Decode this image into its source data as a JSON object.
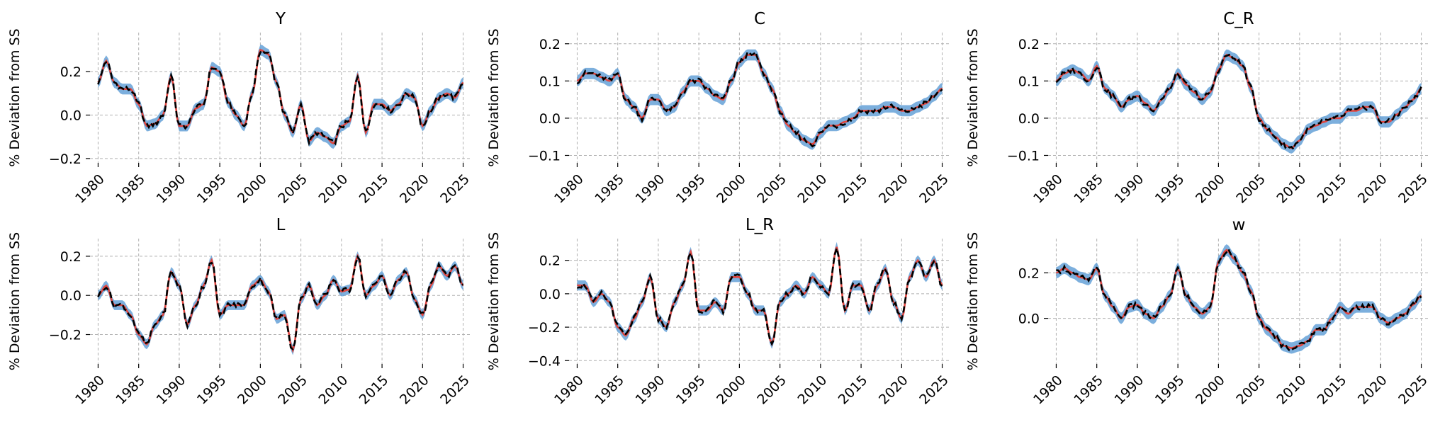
{
  "figure": {
    "ylabel": "% Deviation from SS",
    "colors": {
      "band": "#5b9bd5",
      "band_opacity": 0.8,
      "median": "#e0453f",
      "observed": "#000000",
      "grid": "#b0b0b0"
    },
    "line_styles": {
      "observed": "dashed",
      "median": "solid"
    }
  },
  "chart_data": [
    {
      "type": "line",
      "title": "Y",
      "ylabel": "% Deviation from SS",
      "x_ticks": [
        1980,
        1985,
        1990,
        1995,
        2000,
        2005,
        2010,
        2015,
        2020,
        2025
      ],
      "xlim": [
        1979,
        2026
      ],
      "y_ticks": [
        -0.2,
        0.0,
        0.2
      ],
      "y_tick_labels": [
        "−0.2",
        "0.0",
        "0.2"
      ],
      "ylim": [
        -0.22,
        0.38
      ],
      "band_halfwidth": 0.025,
      "x": [
        1980,
        1981,
        1982,
        1983,
        1984,
        1985,
        1986,
        1987,
        1988,
        1989,
        1990,
        1991,
        1992,
        1993,
        1994,
        1995,
        1996,
        1997,
        1998,
        1999,
        2000,
        2001,
        2002,
        2003,
        2004,
        2005,
        2006,
        2007,
        2008,
        2009,
        2010,
        2011,
        2012,
        2013,
        2014,
        2015,
        2016,
        2017,
        2018,
        2019,
        2020,
        2021,
        2022,
        2023,
        2024,
        2025
      ],
      "values": [
        0.15,
        0.25,
        0.15,
        0.12,
        0.12,
        0.05,
        -0.05,
        -0.04,
        0.0,
        0.18,
        -0.05,
        -0.05,
        0.03,
        0.05,
        0.22,
        0.2,
        0.06,
        0.0,
        -0.05,
        0.1,
        0.3,
        0.28,
        0.15,
        0.0,
        -0.08,
        0.05,
        -0.12,
        -0.08,
        -0.1,
        -0.13,
        -0.05,
        -0.03,
        0.18,
        -0.08,
        0.05,
        0.05,
        0.02,
        0.05,
        0.1,
        0.08,
        -0.05,
        0.02,
        0.08,
        0.1,
        0.08,
        0.15
      ]
    },
    {
      "type": "line",
      "title": "C",
      "ylabel": "% Deviation from SS",
      "x_ticks": [
        1980,
        1985,
        1990,
        1995,
        2000,
        2005,
        2010,
        2015,
        2020,
        2025
      ],
      "xlim": [
        1979,
        2026
      ],
      "y_ticks": [
        -0.1,
        0.0,
        0.1,
        0.2
      ],
      "y_tick_labels": [
        "−0.1",
        "0.0",
        "0.1",
        "0.2"
      ],
      "ylim": [
        -0.12,
        0.23
      ],
      "band_halfwidth": 0.015,
      "x": [
        1980,
        1981,
        1982,
        1983,
        1984,
        1985,
        1986,
        1987,
        1988,
        1989,
        1990,
        1991,
        1992,
        1993,
        1994,
        1995,
        1996,
        1997,
        1998,
        1999,
        2000,
        2001,
        2002,
        2003,
        2004,
        2005,
        2006,
        2007,
        2008,
        2009,
        2010,
        2011,
        2012,
        2013,
        2014,
        2015,
        2016,
        2017,
        2018,
        2019,
        2020,
        2021,
        2022,
        2023,
        2024,
        2025
      ],
      "values": [
        0.1,
        0.12,
        0.12,
        0.11,
        0.1,
        0.12,
        0.05,
        0.03,
        0.0,
        0.05,
        0.05,
        0.02,
        0.03,
        0.07,
        0.1,
        0.1,
        0.08,
        0.06,
        0.05,
        0.1,
        0.15,
        0.17,
        0.17,
        0.12,
        0.08,
        0.02,
        -0.02,
        -0.04,
        -0.06,
        -0.07,
        -0.04,
        -0.02,
        -0.02,
        -0.01,
        0.0,
        0.02,
        0.02,
        0.02,
        0.03,
        0.03,
        0.02,
        0.02,
        0.03,
        0.04,
        0.06,
        0.08
      ]
    },
    {
      "type": "line",
      "title": "C_R",
      "ylabel": "% Deviation from SS",
      "x_ticks": [
        1980,
        1985,
        1990,
        1995,
        2000,
        2005,
        2010,
        2015,
        2020,
        2025
      ],
      "xlim": [
        1979,
        2026
      ],
      "y_ticks": [
        -0.1,
        0.0,
        0.1,
        0.2
      ],
      "y_tick_labels": [
        "−0.1",
        "0.0",
        "0.1",
        "0.2"
      ],
      "ylim": [
        -0.12,
        0.23
      ],
      "band_halfwidth": 0.015,
      "x": [
        1980,
        1981,
        1982,
        1983,
        1984,
        1985,
        1986,
        1987,
        1988,
        1989,
        1990,
        1991,
        1992,
        1993,
        1994,
        1995,
        1996,
        1997,
        1998,
        1999,
        2000,
        2001,
        2002,
        2003,
        2004,
        2005,
        2006,
        2007,
        2008,
        2009,
        2010,
        2011,
        2012,
        2013,
        2014,
        2015,
        2016,
        2017,
        2018,
        2019,
        2020,
        2021,
        2022,
        2023,
        2024,
        2025
      ],
      "values": [
        0.1,
        0.12,
        0.13,
        0.12,
        0.1,
        0.14,
        0.08,
        0.06,
        0.03,
        0.05,
        0.06,
        0.04,
        0.02,
        0.05,
        0.08,
        0.12,
        0.09,
        0.07,
        0.05,
        0.07,
        0.13,
        0.17,
        0.16,
        0.14,
        0.08,
        0.0,
        -0.03,
        -0.05,
        -0.07,
        -0.08,
        -0.06,
        -0.03,
        -0.02,
        -0.01,
        0.0,
        0.0,
        0.02,
        0.02,
        0.03,
        0.03,
        -0.01,
        -0.01,
        0.01,
        0.03,
        0.05,
        0.08
      ]
    },
    {
      "type": "line",
      "title": "L",
      "ylabel": "% Deviation from SS",
      "x_ticks": [
        1980,
        1985,
        1990,
        1995,
        2000,
        2005,
        2010,
        2015,
        2020,
        2025
      ],
      "xlim": [
        1979,
        2026
      ],
      "y_ticks": [
        -0.2,
        0.0,
        0.2
      ],
      "y_tick_labels": [
        "−0.2",
        "0.0",
        "0.2"
      ],
      "ylim": [
        -0.35,
        0.29
      ],
      "band_halfwidth": 0.025,
      "x": [
        1980,
        1981,
        1982,
        1983,
        1984,
        1985,
        1986,
        1987,
        1988,
        1989,
        1990,
        1991,
        1992,
        1993,
        1994,
        1995,
        1996,
        1997,
        1998,
        1999,
        2000,
        2001,
        2002,
        2003,
        2004,
        2005,
        2006,
        2007,
        2008,
        2009,
        2010,
        2011,
        2012,
        2013,
        2014,
        2015,
        2016,
        2017,
        2018,
        2019,
        2020,
        2021,
        2022,
        2023,
        2024,
        2025
      ],
      "values": [
        0.0,
        0.05,
        -0.05,
        -0.05,
        -0.1,
        -0.2,
        -0.25,
        -0.15,
        -0.1,
        0.12,
        0.05,
        -0.15,
        -0.05,
        0.05,
        0.18,
        -0.1,
        -0.05,
        -0.05,
        -0.05,
        0.05,
        0.08,
        0.02,
        -0.12,
        -0.1,
        -0.28,
        -0.02,
        0.05,
        -0.05,
        0.0,
        0.08,
        0.02,
        0.03,
        0.2,
        0.0,
        0.05,
        0.1,
        0.0,
        0.08,
        0.12,
        -0.02,
        -0.1,
        0.05,
        0.15,
        0.1,
        0.15,
        0.05
      ]
    },
    {
      "type": "line",
      "title": "L_R",
      "ylabel": "% Deviation from SS",
      "x_ticks": [
        1980,
        1985,
        1990,
        1995,
        2000,
        2005,
        2010,
        2015,
        2020,
        2025
      ],
      "xlim": [
        1979,
        2026
      ],
      "y_ticks": [
        -0.4,
        -0.2,
        0.0,
        0.2
      ],
      "y_tick_labels": [
        "−0.4",
        "−0.2",
        "0.0",
        "0.2"
      ],
      "ylim": [
        -0.42,
        0.33
      ],
      "band_halfwidth": 0.03,
      "x": [
        1980,
        1981,
        1982,
        1983,
        1984,
        1985,
        1986,
        1987,
        1988,
        1989,
        1990,
        1991,
        1992,
        1993,
        1994,
        1995,
        1996,
        1997,
        1998,
        1999,
        2000,
        2001,
        2002,
        2003,
        2004,
        2005,
        2006,
        2007,
        2008,
        2009,
        2010,
        2011,
        2012,
        2013,
        2014,
        2015,
        2016,
        2017,
        2018,
        2019,
        2020,
        2021,
        2022,
        2023,
        2024,
        2025
      ],
      "values": [
        0.05,
        0.05,
        -0.05,
        0.0,
        -0.05,
        -0.2,
        -0.25,
        -0.15,
        -0.05,
        0.1,
        -0.15,
        -0.2,
        -0.05,
        0.05,
        0.25,
        -0.1,
        -0.1,
        -0.05,
        -0.1,
        0.1,
        0.1,
        0.0,
        -0.1,
        -0.1,
        -0.3,
        -0.05,
        0.0,
        0.05,
        0.0,
        0.1,
        0.05,
        0.0,
        0.28,
        -0.1,
        0.05,
        0.05,
        -0.1,
        0.05,
        0.15,
        -0.05,
        -0.15,
        0.1,
        0.2,
        0.1,
        0.2,
        0.05
      ]
    },
    {
      "type": "line",
      "title": "w",
      "ylabel": "% Deviation from SS",
      "x_ticks": [
        1980,
        1985,
        1990,
        1995,
        2000,
        2005,
        2010,
        2015,
        2020,
        2025
      ],
      "xlim": [
        1979,
        2026
      ],
      "y_ticks": [
        0.0,
        0.2
      ],
      "y_tick_labels": [
        "0.0",
        "0.2"
      ],
      "ylim": [
        -0.2,
        0.35
      ],
      "band_halfwidth": 0.025,
      "x": [
        1980,
        1981,
        1982,
        1983,
        1984,
        1985,
        1986,
        1987,
        1988,
        1989,
        1990,
        1991,
        1992,
        1993,
        1994,
        1995,
        1996,
        1997,
        1998,
        1999,
        2000,
        2001,
        2002,
        2003,
        2004,
        2005,
        2006,
        2007,
        2008,
        2009,
        2010,
        2011,
        2012,
        2013,
        2014,
        2015,
        2016,
        2017,
        2018,
        2019,
        2020,
        2021,
        2022,
        2023,
        2024,
        2025
      ],
      "values": [
        0.2,
        0.22,
        0.2,
        0.18,
        0.17,
        0.22,
        0.1,
        0.05,
        0.0,
        0.05,
        0.06,
        0.02,
        0.0,
        0.05,
        0.1,
        0.22,
        0.1,
        0.05,
        0.02,
        0.05,
        0.25,
        0.3,
        0.26,
        0.2,
        0.12,
        0.0,
        -0.05,
        -0.08,
        -0.12,
        -0.13,
        -0.12,
        -0.1,
        -0.05,
        -0.05,
        0.0,
        0.05,
        0.02,
        0.05,
        0.05,
        0.05,
        0.0,
        -0.02,
        0.0,
        0.02,
        0.06,
        0.1
      ]
    }
  ]
}
